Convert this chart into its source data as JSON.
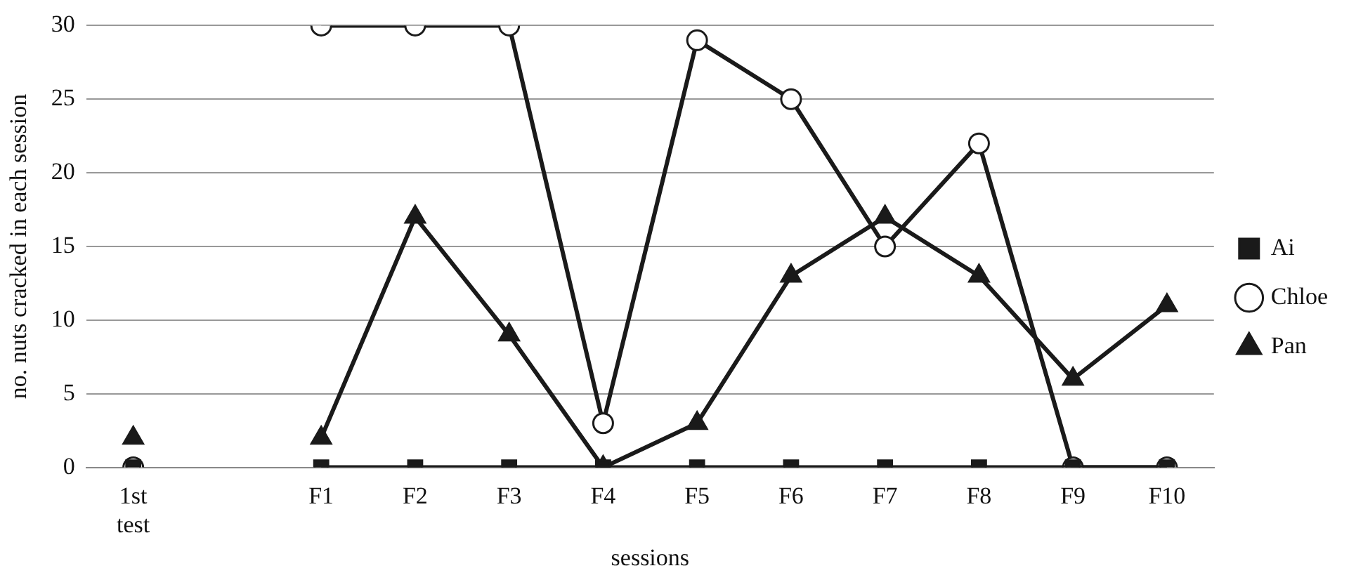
{
  "chart_data": {
    "type": "line",
    "xlabel": "sessions",
    "ylabel": "no. nuts cracked in each session",
    "categories": [
      "1st test",
      null,
      "F1",
      "F2",
      "F3",
      "F4",
      "F5",
      "F6",
      "F7",
      "F8",
      "F9",
      "F10"
    ],
    "series": [
      {
        "name": "Ai",
        "color": "#1a1a1a",
        "marker": "square",
        "values": [
          0,
          null,
          0,
          0,
          0,
          0,
          0,
          0,
          0,
          0,
          0,
          0
        ]
      },
      {
        "name": "Chloe",
        "color": "#1a1a1a",
        "marker": "circle",
        "values": [
          0,
          null,
          30,
          30,
          30,
          3,
          29,
          25,
          15,
          22,
          0,
          0
        ]
      },
      {
        "name": "Pan",
        "color": "#1a1a1a",
        "marker": "triangle",
        "values": [
          2,
          null,
          2,
          17,
          9,
          0,
          3,
          13,
          17,
          13,
          6,
          11
        ]
      }
    ],
    "ylim": [
      0,
      30
    ],
    "yticks": [
      0,
      5,
      10,
      15,
      20,
      25,
      30
    ],
    "grid": "y",
    "legend": "right",
    "line_style": "solid"
  }
}
